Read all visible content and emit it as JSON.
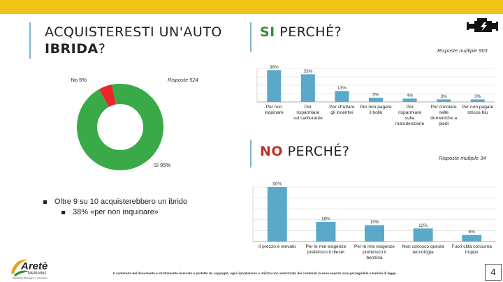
{
  "left": {
    "title_line1": "ACQUISTERESTI UN'AUTO",
    "title_bold": "IBRIDA",
    "title_suffix": "?",
    "responses": "Risposte 524",
    "bullet1": "Oltre 9 su 10 acquisterebbero un ibrido",
    "bullet2": "38% «per non inquinare»"
  },
  "top": {
    "title_bold": "SI",
    "title_rest": " PERCHÉ?",
    "responses": "Risposte multiple 903"
  },
  "bottom": {
    "title_bold": "NO",
    "title_rest": " PERCHÉ?",
    "responses": "Risposte multiple 34"
  },
  "logo": {
    "name": "Aretè",
    "tagline": "Methodos",
    "subline": "Marketing Strategico & Operativo"
  },
  "footer": {
    "disclaimer": "Il contenuto del documento è strettamente riservato e protetto da copyright, ogni riproduzione o utilizzo non autorizzato dei contenuti in esso esposti sarà perseguibile a termini di legge.",
    "page": "4"
  },
  "colors": {
    "green": "#3aaa48",
    "red": "#e8262b",
    "bar": "#5aa9c8",
    "yellow": "#f2c319",
    "si_title": "#3a8a3a",
    "no_title": "#c0312b"
  },
  "icons": {
    "engine": "engine-icon"
  },
  "chart_data": [
    {
      "type": "pie",
      "donut": true,
      "slices": [
        {
          "label": "Sì 95%",
          "value": 95,
          "color": "#3aaa48"
        },
        {
          "label": "No 5%",
          "value": 5,
          "color": "#e8262b"
        }
      ]
    },
    {
      "type": "bar",
      "categories": [
        "Per non inquinare",
        "Per risparmiare sul carburante",
        "Per sfruttare gli incentivi",
        "Per non pagare il bollo",
        "Per risparmiare sulla manutenzione",
        "Per circolare nelle domeniche a piedi",
        "Per non pagare strisce blu"
      ],
      "values": [
        38,
        33,
        13,
        5,
        4,
        3,
        3
      ],
      "value_labels": [
        "38%",
        "33%",
        "13%",
        "5%",
        "4%",
        "3%",
        "3%"
      ],
      "ylim": [
        0,
        40
      ],
      "grid": true
    },
    {
      "type": "bar",
      "categories": [
        "Il prezzo è elevato",
        "Per le mie esigenze preferisco il diesel",
        "Per le mie esigenze preferisco il benzina",
        "Non conosco questa tecnologia",
        "Fuori città consuma troppo"
      ],
      "values": [
        50,
        18,
        15,
        12,
        6
      ],
      "value_labels": [
        "50%",
        "18%",
        "15%",
        "12%",
        "6%"
      ],
      "ylim": [
        0,
        50
      ],
      "grid": true
    }
  ]
}
